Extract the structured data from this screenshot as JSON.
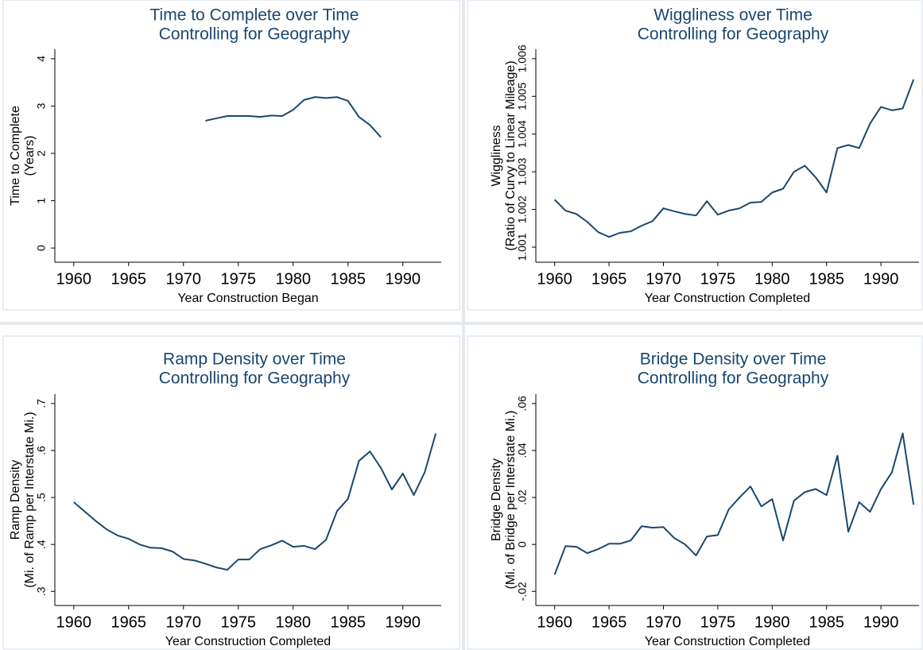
{
  "chart_data": [
    {
      "type": "line",
      "title": "Time to Complete over Time",
      "subtitle": "Controlling for Geography",
      "xlabel": "Year Construction Began",
      "ylabel": [
        "Time to Complete",
        "(Years)"
      ],
      "x": [
        1972,
        1973,
        1974,
        1975,
        1976,
        1977,
        1978,
        1979,
        1980,
        1981,
        1982,
        1983,
        1984,
        1985,
        1986,
        1987,
        1988
      ],
      "values": [
        2.69,
        2.74,
        2.79,
        2.79,
        2.79,
        2.77,
        2.8,
        2.79,
        2.92,
        3.13,
        3.19,
        3.17,
        3.19,
        3.11,
        2.77,
        2.6,
        2.34
      ],
      "color": "#1a476f",
      "xlim": [
        1959,
        1993.5
      ],
      "xticks": [
        1960,
        1965,
        1970,
        1975,
        1980,
        1985,
        1990
      ],
      "ylim": [
        -0.3,
        4.2
      ],
      "yticks": [
        0,
        1,
        2,
        3,
        4
      ]
    },
    {
      "type": "line",
      "title": "Wiggliness over Time",
      "subtitle": "Controlling for Geography",
      "xlabel": "Year Construction Completed",
      "ylabel": [
        "Wiggliness",
        "(Ratio of Curvy to Linear Mileage)"
      ],
      "x": [
        1960,
        1961,
        1962,
        1963,
        1964,
        1965,
        1966,
        1967,
        1968,
        1969,
        1970,
        1971,
        1972,
        1973,
        1974,
        1975,
        1976,
        1977,
        1978,
        1979,
        1980,
        1981,
        1982,
        1983,
        1984,
        1985,
        1986,
        1987,
        1988,
        1989,
        1990,
        1991,
        1992,
        1993
      ],
      "values": [
        1.00226,
        1.00197,
        1.00188,
        1.00167,
        1.0014,
        1.00127,
        1.00138,
        1.00142,
        1.00157,
        1.00169,
        1.00203,
        1.00195,
        1.00188,
        1.00184,
        1.00222,
        1.00186,
        1.00197,
        1.00203,
        1.00218,
        1.0022,
        1.00245,
        1.00255,
        1.003,
        1.00316,
        1.00285,
        1.00245,
        1.00363,
        1.00371,
        1.00363,
        1.00428,
        1.00472,
        1.00463,
        1.00468,
        1.00545
      ],
      "color": "#1a476f",
      "xlim": [
        1959,
        1993.5
      ],
      "xticks": [
        1960,
        1965,
        1970,
        1975,
        1980,
        1985,
        1990
      ],
      "ylim": [
        1.0006,
        1.00625
      ],
      "yticks": [
        1.001,
        1.002,
        1.003,
        1.004,
        1.005,
        1.006
      ]
    },
    {
      "type": "line",
      "title": "Ramp Density over Time",
      "subtitle": "Controlling for Geography",
      "xlabel": "Year Construction Completed",
      "ylabel": [
        "Ramp Density",
        "(Mi. of Ramp per Interstate Mi.)"
      ],
      "x": [
        1960,
        1961,
        1962,
        1963,
        1964,
        1965,
        1966,
        1967,
        1968,
        1969,
        1970,
        1971,
        1972,
        1973,
        1974,
        1975,
        1976,
        1977,
        1978,
        1979,
        1980,
        1981,
        1982,
        1983,
        1984,
        1985,
        1986,
        1987,
        1988,
        1989,
        1990,
        1991,
        1992,
        1993
      ],
      "values": [
        0.49,
        0.47,
        0.45,
        0.432,
        0.419,
        0.412,
        0.4,
        0.393,
        0.392,
        0.385,
        0.369,
        0.366,
        0.359,
        0.351,
        0.346,
        0.368,
        0.368,
        0.39,
        0.398,
        0.408,
        0.395,
        0.397,
        0.39,
        0.41,
        0.471,
        0.497,
        0.578,
        0.598,
        0.563,
        0.517,
        0.551,
        0.505,
        0.554,
        0.636
      ],
      "color": "#1a476f",
      "xlim": [
        1959,
        1993.5
      ],
      "xticks": [
        1960,
        1965,
        1970,
        1975,
        1980,
        1985,
        1990
      ],
      "ylim": [
        0.27,
        0.72
      ],
      "yticks": [
        {
          "value": 0.3,
          "label": ".3"
        },
        {
          "value": 0.4,
          "label": ".4"
        },
        {
          "value": 0.5,
          "label": ".5"
        },
        {
          "value": 0.6,
          "label": ".6"
        },
        {
          "value": 0.7,
          "label": ".7"
        }
      ]
    },
    {
      "type": "line",
      "title": "Bridge Density over Time",
      "subtitle": "Controlling for Geography",
      "xlabel": "Year Construction Completed",
      "ylabel": [
        "Bridge Density",
        "(Mi. of Bridge per Interstate Mi.)"
      ],
      "x": [
        1960,
        1961,
        1962,
        1963,
        1964,
        1965,
        1966,
        1967,
        1968,
        1969,
        1970,
        1971,
        1972,
        1973,
        1974,
        1975,
        1976,
        1977,
        1978,
        1979,
        1980,
        1981,
        1982,
        1983,
        1984,
        1985,
        1986,
        1987,
        1988,
        1989,
        1990,
        1991,
        1992,
        1993
      ],
      "values": [
        -0.0128,
        -0.0007,
        -0.001,
        -0.0037,
        -0.002,
        0.0003,
        0.0003,
        0.0017,
        0.0078,
        0.0071,
        0.0074,
        0.0027,
        0,
        -0.0047,
        0.0034,
        0.004,
        0.0149,
        0.02,
        0.0247,
        0.0162,
        0.0193,
        0.0017,
        0.0186,
        0.0223,
        0.0236,
        0.021,
        0.0378,
        0.0054,
        0.018,
        0.0139,
        0.0236,
        0.0307,
        0.0473,
        0.0169
      ],
      "color": "#1a476f",
      "xlim": [
        1959,
        1993.5
      ],
      "xticks": [
        1960,
        1965,
        1970,
        1975,
        1980,
        1985,
        1990
      ],
      "ylim": [
        -0.026,
        0.064
      ],
      "yticks": [
        {
          "value": -0.02,
          "label": "-.02"
        },
        0,
        {
          "value": 0.02,
          "label": ".02"
        },
        {
          "value": 0.04,
          "label": ".04"
        },
        {
          "value": 0.06,
          "label": ".06"
        }
      ]
    }
  ]
}
